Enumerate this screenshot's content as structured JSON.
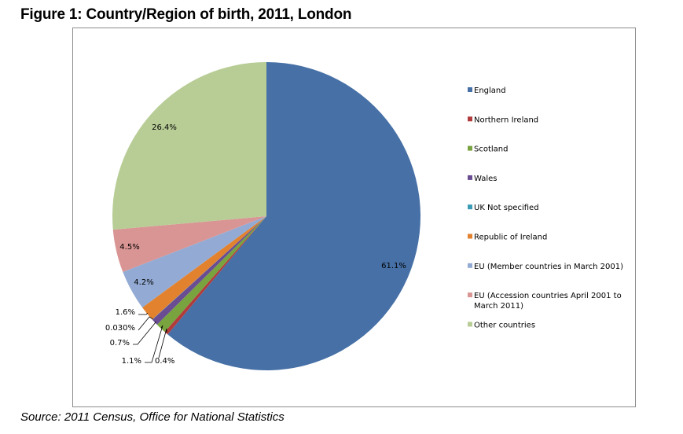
{
  "figure": {
    "title": "Figure 1: Country/Region of birth, 2011, London",
    "source": "Source: 2011 Census, Office for National Statistics"
  },
  "chart_data": {
    "type": "pie",
    "title": "",
    "legend_position": "right",
    "categories": [
      "England",
      "Northern Ireland",
      "Scotland",
      "Wales",
      "UK Not specified",
      "Republic of Ireland",
      "EU (Member countries in March 2001)",
      "EU (Accession countries April 2001 to March 2011)",
      "Other countries"
    ],
    "legend_lines": [
      [
        "England"
      ],
      [
        "Northern Ireland"
      ],
      [
        "Scotland"
      ],
      [
        "Wales"
      ],
      [
        "UK Not specified"
      ],
      [
        "Republic of Ireland"
      ],
      [
        "EU (Member countries in March 2001)"
      ],
      [
        "EU (Accession countries April 2001 to",
        "March 2011)"
      ],
      [
        "Other countries"
      ]
    ],
    "values": [
      61.1,
      0.4,
      1.1,
      0.7,
      0.03,
      1.6,
      4.2,
      4.5,
      26.4
    ],
    "data_labels": [
      "61.1%",
      "0.4%",
      "1.1%",
      "0.7%",
      "0.030%",
      "1.6%",
      "4.2%",
      "4.5%",
      "26.4%"
    ],
    "colors": [
      "#4670A6",
      "#B23B3B",
      "#78A33F",
      "#6A4C93",
      "#3A9CB5",
      "#E3822E",
      "#93ABD4",
      "#D99594",
      "#B8CD96"
    ]
  }
}
